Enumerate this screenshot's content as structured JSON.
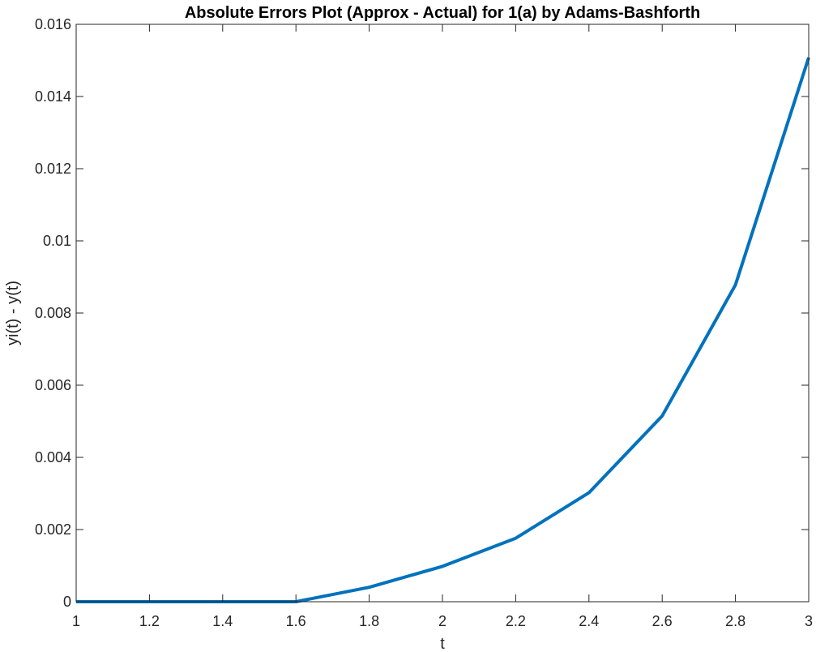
{
  "chart_data": {
    "type": "line",
    "title": "Absolute Errors Plot (Approx - Actual) for 1(a) by Adams-Bashforth",
    "xlabel": "t",
    "ylabel": "yi(t) - y(t)",
    "xlim": [
      1,
      3
    ],
    "ylim": [
      0,
      0.016
    ],
    "x_ticks": [
      "1",
      "1.2",
      "1.4",
      "1.6",
      "1.8",
      "2",
      "2.2",
      "2.4",
      "2.6",
      "2.8",
      "3"
    ],
    "y_ticks": [
      "0",
      "0.002",
      "0.004",
      "0.006",
      "0.008",
      "0.01",
      "0.012",
      "0.014",
      "0.016"
    ],
    "grid": false,
    "series": [
      {
        "color": "#0072BD",
        "x": [
          1,
          1.2,
          1.4,
          1.6,
          1.8,
          2.0,
          2.2,
          2.4,
          2.6,
          2.8,
          3.0
        ],
        "y": [
          0,
          0,
          0,
          0,
          0.0004,
          0.00098,
          0.00176,
          0.00302,
          0.00515,
          0.00878,
          0.01508
        ]
      }
    ]
  }
}
